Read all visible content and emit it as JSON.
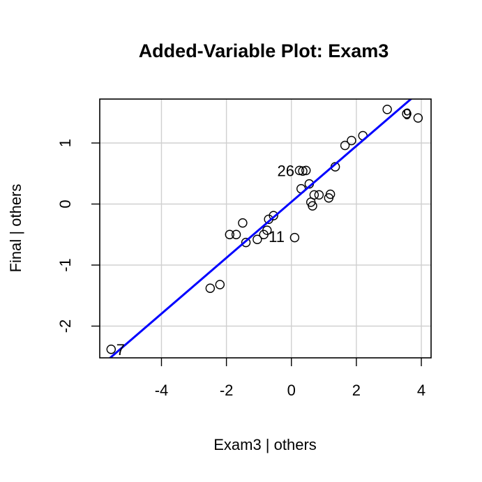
{
  "chart_data": {
    "type": "scatter",
    "title": "Added-Variable Plot: Exam3",
    "xlabel": "Exam3 | others",
    "ylabel": "Final  | others",
    "xlim": [
      -5.9,
      4.3
    ],
    "ylim": [
      -2.52,
      1.72
    ],
    "x_ticks": [
      -4,
      -2,
      0,
      2,
      4
    ],
    "x_tick_labels": [
      "-4",
      "-2",
      "0",
      "2",
      "4"
    ],
    "y_ticks": [
      -2,
      -1,
      0,
      1
    ],
    "y_tick_labels": [
      "-2",
      "-1",
      "0",
      "1"
    ],
    "grid": true,
    "points": [
      {
        "x": -5.55,
        "y": -2.38
      },
      {
        "x": -2.5,
        "y": -1.38
      },
      {
        "x": -2.2,
        "y": -1.32
      },
      {
        "x": -1.9,
        "y": -0.5
      },
      {
        "x": -1.7,
        "y": -0.5
      },
      {
        "x": -1.5,
        "y": -0.31
      },
      {
        "x": -1.4,
        "y": -0.63
      },
      {
        "x": -1.05,
        "y": -0.58
      },
      {
        "x": -0.85,
        "y": -0.5
      },
      {
        "x": -0.75,
        "y": -0.43
      },
      {
        "x": -0.7,
        "y": -0.25
      },
      {
        "x": -0.55,
        "y": -0.19
      },
      {
        "x": 0.1,
        "y": -0.55
      },
      {
        "x": 0.25,
        "y": 0.55
      },
      {
        "x": 0.3,
        "y": 0.25
      },
      {
        "x": 0.35,
        "y": 0.54
      },
      {
        "x": 0.45,
        "y": 0.55
      },
      {
        "x": 0.55,
        "y": 0.33
      },
      {
        "x": 0.6,
        "y": 0.03
      },
      {
        "x": 0.65,
        "y": -0.03
      },
      {
        "x": 0.7,
        "y": 0.15
      },
      {
        "x": 0.85,
        "y": 0.15
      },
      {
        "x": 1.15,
        "y": 0.1
      },
      {
        "x": 1.2,
        "y": 0.16
      },
      {
        "x": 1.35,
        "y": 0.61
      },
      {
        "x": 1.65,
        "y": 0.96
      },
      {
        "x": 1.85,
        "y": 1.04
      },
      {
        "x": 2.2,
        "y": 1.12
      },
      {
        "x": 2.95,
        "y": 1.55
      },
      {
        "x": 3.55,
        "y": 1.48
      },
      {
        "x": 3.9,
        "y": 1.41
      }
    ],
    "point_labels": [
      {
        "text": "7",
        "x": -5.55,
        "y": -2.38,
        "anchor": "start",
        "dx": 0.16
      },
      {
        "text": "26",
        "x": 0.25,
        "y": 0.55,
        "anchor": "end",
        "dx": -0.16
      },
      {
        "text": "11",
        "x": -0.75,
        "y": -0.53,
        "anchor": "start",
        "dx": 0.05
      },
      {
        "text": "9",
        "x": 3.55,
        "y": 1.48,
        "anchor": "end",
        "dx": 0.15
      }
    ],
    "fit_line": {
      "slope": 0.458,
      "intercept": 0.035,
      "color": "#0000ff"
    }
  }
}
